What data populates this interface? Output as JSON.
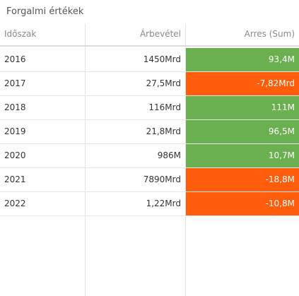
{
  "panel": {
    "title": "Forgalmi értékek"
  },
  "table": {
    "columns": {
      "period": "Időszak",
      "revenue": "Árbevétel",
      "margin": "Arres (Sum)"
    },
    "colors": {
      "positive": "#6aaf50",
      "negative": "#ff5d0c"
    },
    "rows": [
      {
        "period": "2016",
        "revenue": "1450Mrd",
        "margin": "93,4M",
        "status": "positive"
      },
      {
        "period": "2017",
        "revenue": "27,5Mrd",
        "margin": "-7,82Mrd",
        "status": "negative"
      },
      {
        "period": "2018",
        "revenue": "116Mrd",
        "margin": "111M",
        "status": "positive"
      },
      {
        "period": "2019",
        "revenue": "21,8Mrd",
        "margin": "96,5M",
        "status": "positive"
      },
      {
        "period": "2020",
        "revenue": "986M",
        "margin": "10,7M",
        "status": "positive"
      },
      {
        "period": "2021",
        "revenue": "7890Mrd",
        "margin": "-18,8M",
        "status": "negative"
      },
      {
        "period": "2022",
        "revenue": "1,22Mrd",
        "margin": "-10,8M",
        "status": "negative"
      }
    ]
  }
}
